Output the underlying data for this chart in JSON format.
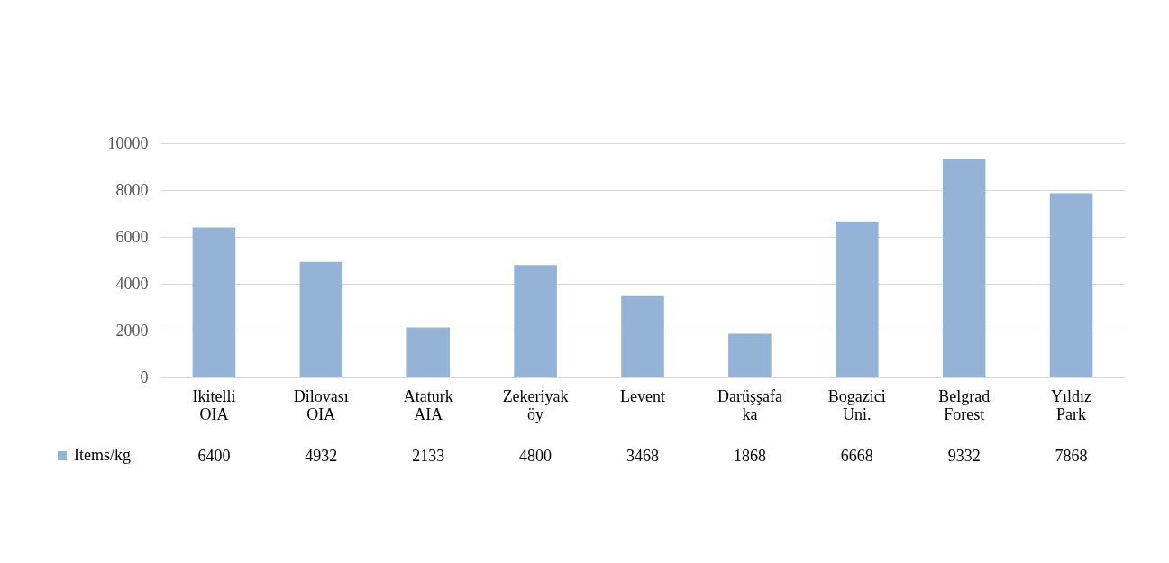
{
  "chart_data": {
    "type": "bar",
    "categories": [
      "Ikitelli OIA",
      "Dilovası OIA",
      "Ataturk AIA",
      "Zekeriyak öy",
      "Levent",
      "Darüşşafa ka",
      "Bogazici Uni.",
      "Belgrad Forest",
      "Yıldız Park"
    ],
    "series": [
      {
        "name": "Items/kg",
        "color": "#95b3d7",
        "values": [
          6400,
          4932,
          2133,
          4800,
          3468,
          1868,
          6668,
          9332,
          7868
        ]
      }
    ],
    "ylim": [
      0,
      10000
    ],
    "yticks": [
      0,
      2000,
      4000,
      6000,
      8000,
      10000
    ],
    "grid": true,
    "legend": "bottom left",
    "data_labels": true
  }
}
